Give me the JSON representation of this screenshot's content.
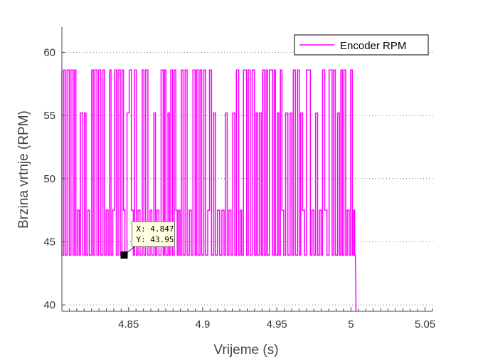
{
  "chart_data": {
    "type": "line",
    "title": "",
    "xlabel": "Vrijeme (s)",
    "ylabel": "Brzina vrtnje (RPM)",
    "xlim": [
      4.805,
      5.055
    ],
    "ylim": [
      39.5,
      62
    ],
    "x_ticks": [
      4.85,
      4.9,
      4.95,
      5,
      5.05
    ],
    "x_tick_labels": [
      "4.85",
      "4.9",
      "4.95",
      "5",
      "5.05"
    ],
    "y_ticks": [
      40,
      45,
      50,
      55,
      60
    ],
    "y_tick_labels": [
      "40",
      "45",
      "50",
      "55",
      "60"
    ],
    "grid": "dotted horizontal",
    "legend_position": "top-right",
    "series": [
      {
        "name": "Encoder RPM",
        "color": "#ff00ff",
        "levels": [
          43.95,
          47.5,
          55.2,
          58.6
        ],
        "pattern": "rapid oscillation between levels every ~1 ms",
        "x_start": 4.805,
        "x_end_oscillation": 5.0025,
        "tail": [
          [
            5.0025,
            43.95
          ],
          [
            5.003,
            43.95
          ],
          [
            5.0033,
            41.5
          ],
          [
            5.0034,
            39.5
          ]
        ]
      }
    ],
    "annotations": [
      {
        "x": 4.847,
        "y": 43.95,
        "label_x": "X: 4.847",
        "label_y": "Y: 43.95"
      }
    ]
  }
}
